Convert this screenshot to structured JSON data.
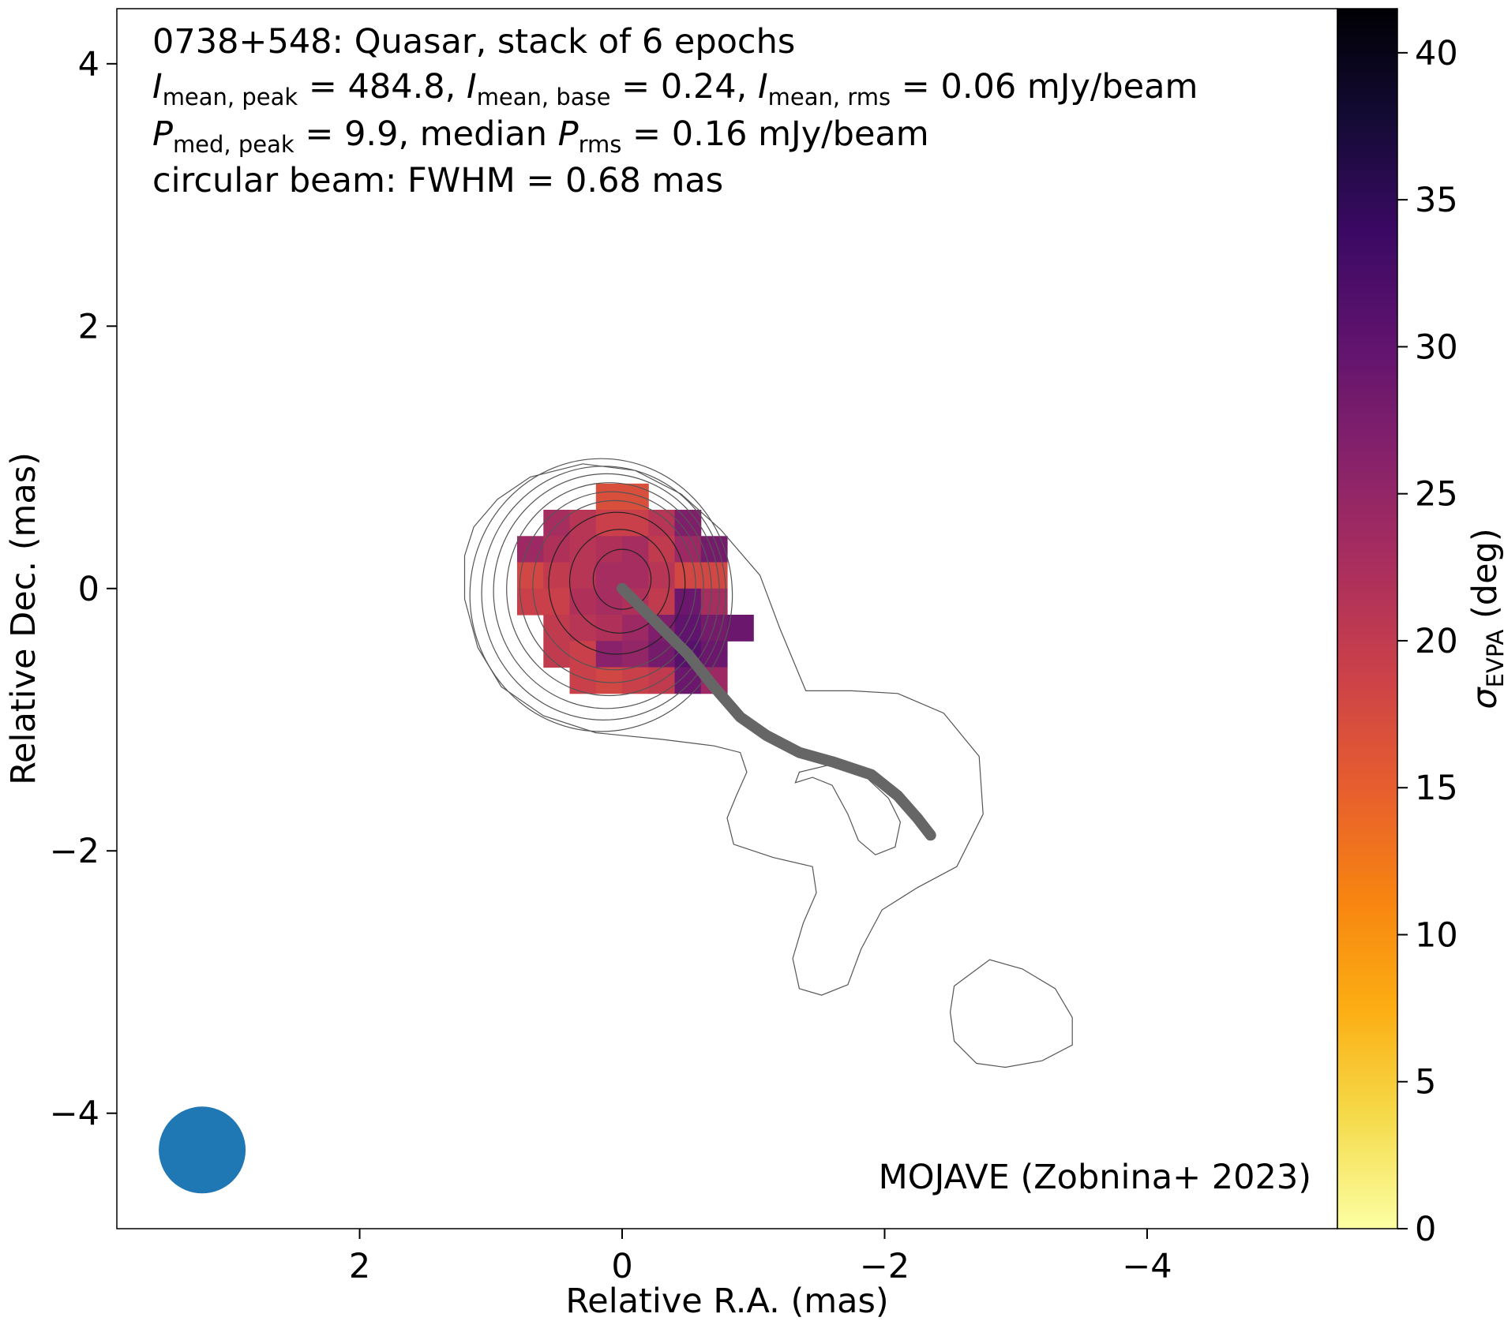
{
  "chart_data": {
    "type": "heatmap",
    "title_lines": [
      "0738+548: Quasar, stack of 6 epochs",
      "I_mean,peak = 484.8, I_mean,base = 0.24, I_mean,rms = 0.06 mJy/beam",
      "P_med,peak = 9.9, median P_rms = 0.16 mJy/beam",
      "circular beam: FWHM = 0.68 mas"
    ],
    "annotations": {
      "line1": "0738+548: Quasar, stack of 6 epochs",
      "I_sym": "I",
      "sub_peak": "mean, peak",
      "sub_base": "mean, base",
      "sub_rms": "mean, rms",
      "eq_peak": " = 484.8, ",
      "eq_base": " = 0.24, ",
      "eq_rms": " = 0.06 mJy/beam",
      "P_sym": "P",
      "sub_med_peak": "med, peak",
      "sub_prms": "rms",
      "eq_ppeak": " = 9.9, median ",
      "eq_prms": " = 0.16 mJy/beam",
      "line4": "circular beam: FWHM = 0.68 mas",
      "credit": "MOJAVE (Zobnina+ 2023)"
    },
    "xlabel": "Relative R.A. (mas)",
    "ylabel": "Relative Dec. (mas)",
    "xlim": [
      3.85,
      -5.45
    ],
    "ylim": [
      -4.88,
      4.42
    ],
    "x_ticks": [
      {
        "value": 2,
        "label": "2"
      },
      {
        "value": 0,
        "label": "0"
      },
      {
        "value": -2,
        "label": "−2"
      },
      {
        "value": -4,
        "label": "−4"
      }
    ],
    "y_ticks": [
      {
        "value": 4,
        "label": "4"
      },
      {
        "value": 2,
        "label": "2"
      },
      {
        "value": 0,
        "label": "0"
      },
      {
        "value": -2,
        "label": "−2"
      },
      {
        "value": -4,
        "label": "−4"
      }
    ],
    "colorbar": {
      "label_symbol": "σ",
      "label_sub": "EVPA",
      "label_unit": " (deg)",
      "range": [
        0,
        41.5
      ],
      "colormap": "inferno_r",
      "ticks": [
        {
          "value": 0,
          "label": "0"
        },
        {
          "value": 5,
          "label": "5"
        },
        {
          "value": 10,
          "label": "10"
        },
        {
          "value": 15,
          "label": "15"
        },
        {
          "value": 20,
          "label": "20"
        },
        {
          "value": 25,
          "label": "25"
        },
        {
          "value": 30,
          "label": "30"
        },
        {
          "value": 35,
          "label": "35"
        },
        {
          "value": 40,
          "label": "40"
        }
      ],
      "stops": [
        "#fcffa4",
        "#f5db4b",
        "#fcad12",
        "#f78311",
        "#e65d2f",
        "#cb4149",
        "#a92e5e",
        "#85216b",
        "#5f136e",
        "#3a0963",
        "#140b35",
        "#000004"
      ]
    },
    "beam": {
      "x": 3.2,
      "y": -4.28,
      "fwhm_mas": 0.68,
      "color": "#1f77b4"
    },
    "ridgeline": {
      "color": "#666666",
      "points": [
        [
          0,
          0
        ],
        [
          -0.25,
          -0.25
        ],
        [
          -0.5,
          -0.5
        ],
        [
          -0.7,
          -0.75
        ],
        [
          -0.9,
          -0.98
        ],
        [
          -1.1,
          -1.12
        ],
        [
          -1.35,
          -1.25
        ],
        [
          -1.6,
          -1.32
        ],
        [
          -1.9,
          -1.42
        ],
        [
          -2.1,
          -1.58
        ],
        [
          -2.25,
          -1.75
        ],
        [
          -2.35,
          -1.88
        ]
      ]
    },
    "contours": {
      "color": "#555555",
      "core_center": [
        0,
        0.07
      ],
      "core_radii_mas": [
        0.22,
        0.38,
        0.52,
        0.62,
        0.7,
        0.78,
        0.86,
        0.93,
        1.0
      ],
      "outer_jet": [
        [
          1.13,
          0.47
        ],
        [
          0.95,
          0.68
        ],
        [
          0.7,
          0.85
        ],
        [
          0.3,
          0.95
        ],
        [
          -0.1,
          0.9
        ],
        [
          -0.45,
          0.72
        ],
        [
          -0.75,
          0.45
        ],
        [
          -1.05,
          0.1
        ],
        [
          -1.2,
          -0.3
        ],
        [
          -1.4,
          -0.78
        ],
        [
          -1.75,
          -0.78
        ],
        [
          -2.1,
          -0.8
        ],
        [
          -2.45,
          -0.95
        ],
        [
          -2.72,
          -1.28
        ],
        [
          -2.75,
          -1.72
        ],
        [
          -2.55,
          -2.12
        ],
        [
          -2.25,
          -2.28
        ],
        [
          -1.98,
          -2.45
        ],
        [
          -1.82,
          -2.75
        ],
        [
          -1.72,
          -3.02
        ],
        [
          -1.52,
          -3.1
        ],
        [
          -1.35,
          -3.05
        ],
        [
          -1.3,
          -2.82
        ],
        [
          -1.38,
          -2.55
        ],
        [
          -1.48,
          -2.32
        ],
        [
          -1.45,
          -2.12
        ],
        [
          -1.15,
          -2.05
        ],
        [
          -0.85,
          -1.95
        ],
        [
          -0.8,
          -1.75
        ],
        [
          -0.87,
          -1.58
        ],
        [
          -0.95,
          -1.4
        ],
        [
          -0.9,
          -1.25
        ],
        [
          -0.7,
          -1.2
        ],
        [
          -0.3,
          -1.15
        ],
        [
          0.2,
          -1.1
        ],
        [
          0.6,
          -0.97
        ],
        [
          0.92,
          -0.75
        ],
        [
          1.1,
          -0.45
        ],
        [
          1.2,
          -0.08
        ],
        [
          1.2,
          0.25
        ]
      ],
      "inner_loop": [
        [
          -1.35,
          -1.4
        ],
        [
          -1.6,
          -1.34
        ],
        [
          -1.85,
          -1.43
        ],
        [
          -2.03,
          -1.6
        ],
        [
          -2.12,
          -1.78
        ],
        [
          -2.08,
          -1.97
        ],
        [
          -1.93,
          -2.03
        ],
        [
          -1.8,
          -1.92
        ],
        [
          -1.72,
          -1.72
        ],
        [
          -1.6,
          -1.5
        ],
        [
          -1.45,
          -1.44
        ],
        [
          -1.32,
          -1.48
        ]
      ],
      "blob": [
        [
          -2.53,
          -3.03
        ],
        [
          -2.8,
          -2.83
        ],
        [
          -3.05,
          -2.9
        ],
        [
          -3.3,
          -3.05
        ],
        [
          -3.43,
          -3.27
        ],
        [
          -3.43,
          -3.48
        ],
        [
          -3.2,
          -3.6
        ],
        [
          -2.92,
          -3.65
        ],
        [
          -2.7,
          -3.62
        ],
        [
          -2.53,
          -3.45
        ],
        [
          -2.5,
          -3.23
        ]
      ]
    },
    "pixels": {
      "cell_mas": 0.2,
      "rows": [
        {
          "y": 0.7,
          "cells": [
            [
              0.1,
              17
            ],
            [
              -0.1,
              17
            ]
          ]
        },
        {
          "y": 0.5,
          "cells": [
            [
              0.5,
              23
            ],
            [
              0.3,
              21
            ],
            [
              0.1,
              19
            ],
            [
              -0.1,
              19
            ],
            [
              -0.3,
              21
            ],
            [
              -0.5,
              27
            ]
          ]
        },
        {
          "y": 0.3,
          "cells": [
            [
              0.7,
              24
            ],
            [
              0.5,
              22
            ],
            [
              0.3,
              21
            ],
            [
              0.1,
              22
            ],
            [
              -0.1,
              23
            ],
            [
              -0.3,
              20
            ],
            [
              -0.5,
              24
            ],
            [
              -0.7,
              28
            ]
          ]
        },
        {
          "y": 0.1,
          "cells": [
            [
              0.7,
              18
            ],
            [
              0.5,
              20
            ],
            [
              0.3,
              21
            ],
            [
              0.1,
              23
            ],
            [
              -0.1,
              23
            ],
            [
              -0.3,
              21
            ],
            [
              -0.5,
              18
            ],
            [
              -0.7,
              18
            ]
          ]
        },
        {
          "y": -0.1,
          "cells": [
            [
              0.7,
              19
            ],
            [
              0.5,
              19
            ],
            [
              0.3,
              22
            ],
            [
              0.1,
              23
            ],
            [
              -0.1,
              22
            ],
            [
              -0.3,
              20
            ],
            [
              -0.5,
              29
            ],
            [
              -0.7,
              23
            ]
          ]
        },
        {
          "y": -0.3,
          "cells": [
            [
              0.5,
              20
            ],
            [
              0.3,
              21
            ],
            [
              0.1,
              22
            ],
            [
              -0.1,
              24
            ],
            [
              -0.3,
              27
            ],
            [
              -0.5,
              30
            ],
            [
              -0.7,
              28
            ],
            [
              -0.9,
              29
            ]
          ]
        },
        {
          "y": -0.5,
          "cells": [
            [
              0.5,
              20
            ],
            [
              0.3,
              19
            ],
            [
              0.1,
              26
            ],
            [
              -0.1,
              25
            ],
            [
              -0.3,
              28
            ],
            [
              -0.5,
              31
            ],
            [
              -0.7,
              29
            ]
          ]
        },
        {
          "y": -0.7,
          "cells": [
            [
              0.3,
              19
            ],
            [
              0.1,
              18
            ],
            [
              -0.1,
              19
            ],
            [
              -0.3,
              20
            ],
            [
              -0.5,
              29
            ],
            [
              -0.7,
              24
            ]
          ]
        }
      ]
    }
  }
}
